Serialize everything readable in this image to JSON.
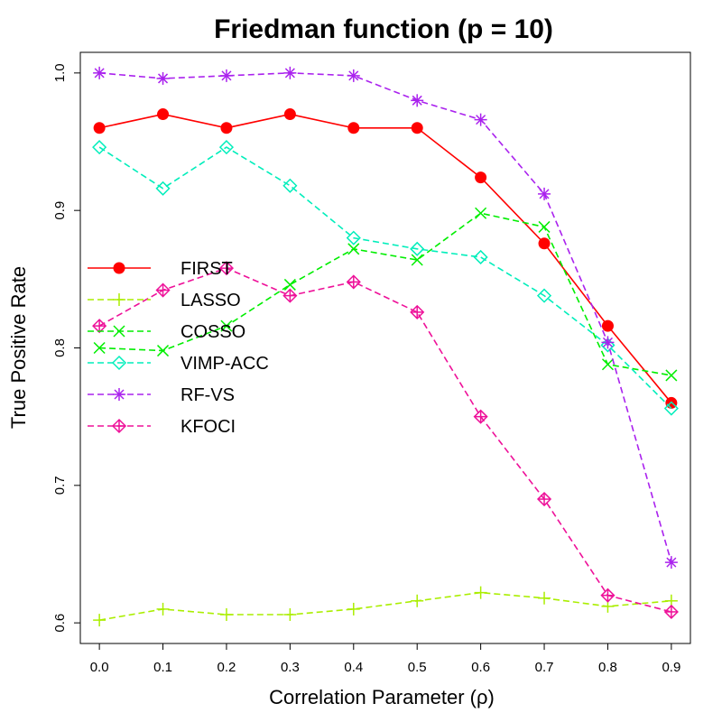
{
  "chart_data": {
    "type": "line",
    "title": "Friedman function (p = 10)",
    "xlabel": "Correlation Parameter (ρ)",
    "ylabel": "True Positive Rate",
    "x": [
      0.0,
      0.1,
      0.2,
      0.3,
      0.4,
      0.5,
      0.6,
      0.7,
      0.8,
      0.9
    ],
    "x_tick_labels": [
      "0.0",
      "0.1",
      "0.2",
      "0.3",
      "0.4",
      "0.5",
      "0.6",
      "0.7",
      "0.8",
      "0.9"
    ],
    "y_ticks": [
      0.6,
      0.7,
      0.8,
      0.9,
      1.0
    ],
    "y_tick_labels": [
      "0.6",
      "0.7",
      "0.8",
      "0.9",
      "1.0"
    ],
    "xlim": [
      -0.03,
      0.93
    ],
    "ylim": [
      0.585,
      1.015
    ],
    "grid": false,
    "legend_position": "left-middle",
    "series": [
      {
        "name": "FIRST",
        "color": "#ff0000",
        "marker": "filled-circle",
        "line": "solid",
        "values": [
          0.96,
          0.97,
          0.96,
          0.97,
          0.96,
          0.96,
          0.924,
          0.876,
          0.816,
          0.76
        ]
      },
      {
        "name": "LASSO",
        "color": "#aaee00",
        "marker": "plus",
        "line": "dashed",
        "values": [
          0.602,
          0.61,
          0.606,
          0.606,
          0.61,
          0.616,
          0.622,
          0.618,
          0.612,
          0.616
        ]
      },
      {
        "name": "COSSO",
        "color": "#00ee00",
        "marker": "x",
        "line": "dashed",
        "values": [
          0.8,
          0.798,
          0.816,
          0.846,
          0.872,
          0.864,
          0.898,
          0.888,
          0.788,
          0.78
        ]
      },
      {
        "name": "VIMP-ACC",
        "color": "#00eebb",
        "marker": "diamond",
        "line": "dashed",
        "values": [
          0.946,
          0.916,
          0.946,
          0.918,
          0.88,
          0.872,
          0.866,
          0.838,
          0.802,
          0.756
        ]
      },
      {
        "name": "RF-VS",
        "color": "#aa22ee",
        "marker": "asterisk",
        "line": "dashed",
        "values": [
          1.0,
          0.996,
          0.998,
          1.0,
          0.998,
          0.98,
          0.966,
          0.912,
          0.804,
          0.644
        ]
      },
      {
        "name": "KFOCI",
        "color": "#ee1199",
        "marker": "diamond-plus",
        "line": "dashed",
        "values": [
          0.816,
          0.842,
          0.858,
          0.838,
          0.848,
          0.826,
          0.75,
          0.69,
          0.62,
          0.608
        ]
      }
    ]
  }
}
